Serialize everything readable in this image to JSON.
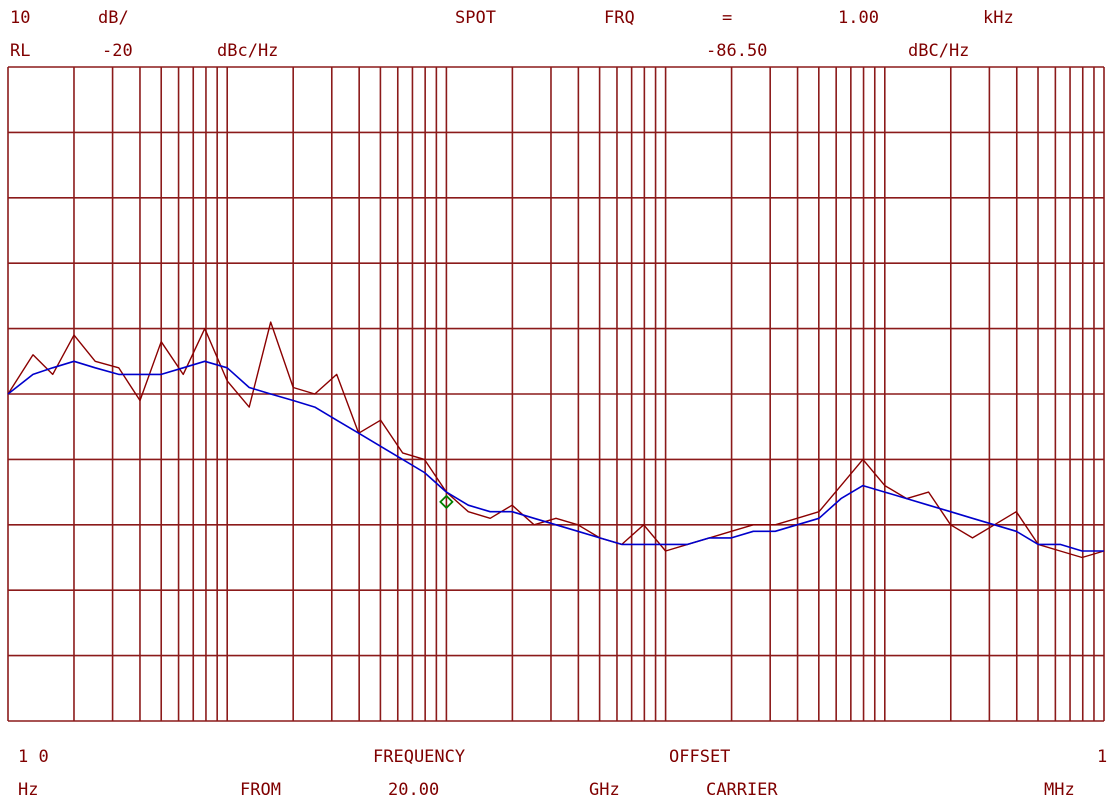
{
  "header": {
    "row1": {
      "scale_value": "10",
      "scale_unit": "dB/",
      "spot": "SPOT",
      "frq": "FRQ",
      "equals": "=",
      "spot_freq": "1.00",
      "spot_freq_unit": "kHz"
    },
    "row2": {
      "rl": "RL",
      "rl_value": "-20",
      "rl_unit": "dBc/Hz",
      "spot_value": "-86.50",
      "spot_value_unit": "dBC/Hz"
    }
  },
  "footer": {
    "row1": {
      "start": "1 0",
      "frequency": "FREQUENCY",
      "offset": "OFFSET",
      "stop": "1"
    },
    "row2": {
      "start_unit": "Hz",
      "from": "FROM",
      "carrier_freq": "20.00",
      "carrier_unit": "GHz",
      "carrier": "CARRIER",
      "stop_unit": "MHz"
    }
  },
  "colors": {
    "grid": "#8b1a1a",
    "trace": "#8b0000",
    "smoothed": "#0000cc",
    "marker": "#008000"
  },
  "chart_data": {
    "type": "line",
    "x_scale": "log",
    "xlim_hz": [
      10,
      1000000
    ],
    "ylim_dbc_hz": [
      -120,
      -20
    ],
    "y_div_db": 10,
    "grid": true,
    "marker": {
      "x_hz": 1000,
      "y_dbc_hz": -86.5
    },
    "series": [
      {
        "role": "raw",
        "x_hz": [
          10,
          13,
          16,
          20,
          25,
          32,
          40,
          50,
          63,
          79,
          100,
          126,
          158,
          200,
          251,
          316,
          398,
          501,
          631,
          794,
          1000,
          1259,
          1585,
          1995,
          2512,
          3162,
          3981,
          5012,
          6310,
          7943,
          10000,
          12589,
          15849,
          19953,
          25119,
          31623,
          39811,
          50119,
          63096,
          79433,
          100000,
          125893,
          158489,
          199526,
          251189,
          316228,
          398107,
          501187,
          630957,
          794328,
          1000000
        ],
        "y_dbc_hz": [
          -70,
          -64,
          -67,
          -61,
          -65,
          -66,
          -71,
          -62,
          -67,
          -60,
          -68,
          -72,
          -59,
          -69,
          -70,
          -67,
          -76,
          -74,
          -79,
          -80,
          -85,
          -88,
          -89,
          -87,
          -90,
          -89,
          -90,
          -92,
          -93,
          -90,
          -94,
          -93,
          -92,
          -91,
          -90,
          -90,
          -89,
          -88,
          -84,
          -80,
          -84,
          -86,
          -85,
          -90,
          -92,
          -90,
          -88,
          -93,
          -94,
          -95,
          -94
        ]
      },
      {
        "role": "smoothed",
        "x_hz": [
          10,
          13,
          16,
          20,
          25,
          32,
          40,
          50,
          63,
          79,
          100,
          126,
          158,
          200,
          251,
          316,
          398,
          501,
          631,
          794,
          1000,
          1259,
          1585,
          1995,
          2512,
          3162,
          3981,
          5012,
          6310,
          7943,
          10000,
          12589,
          15849,
          19953,
          25119,
          31623,
          39811,
          50119,
          63096,
          79433,
          100000,
          125893,
          158489,
          199526,
          251189,
          316228,
          398107,
          501187,
          630957,
          794328,
          1000000
        ],
        "y_dbc_hz": [
          -70,
          -67,
          -66,
          -65,
          -66,
          -67,
          -67,
          -67,
          -66,
          -65,
          -66,
          -69,
          -70,
          -71,
          -72,
          -74,
          -76,
          -78,
          -80,
          -82,
          -85,
          -87,
          -88,
          -88,
          -89,
          -90,
          -91,
          -92,
          -93,
          -93,
          -93,
          -93,
          -92,
          -92,
          -91,
          -91,
          -90,
          -89,
          -86,
          -84,
          -85,
          -86,
          -87,
          -88,
          -89,
          -90,
          -91,
          -93,
          -93,
          -94,
          -94
        ]
      }
    ]
  }
}
